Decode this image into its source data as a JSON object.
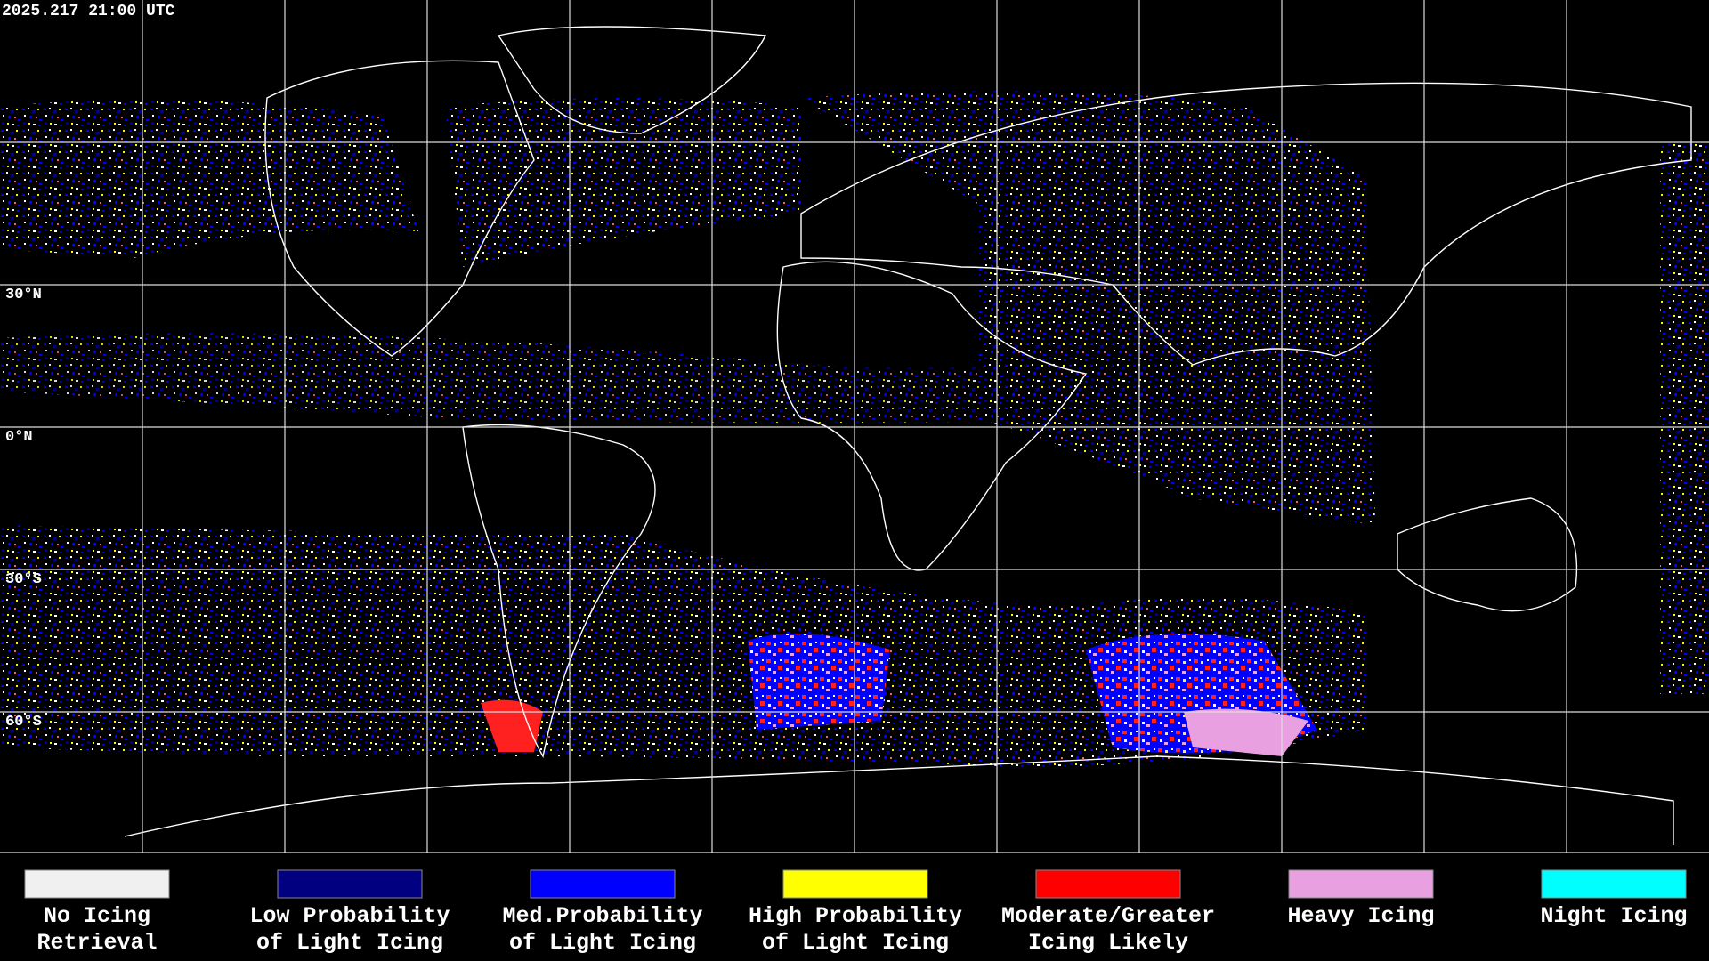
{
  "header": {
    "timestamp": "2025.217 21:00 UTC"
  },
  "map": {
    "latitude_labels": [
      "30°N",
      "0°N",
      "30°S",
      "60°S"
    ]
  },
  "legend": [
    {
      "color": "#f0f0f0",
      "lines": [
        "No Icing",
        "Retrieval"
      ]
    },
    {
      "color": "#000080",
      "lines": [
        "Low Probability",
        "of Light Icing"
      ]
    },
    {
      "color": "#0000ff",
      "lines": [
        "Med.Probability",
        "of Light Icing"
      ]
    },
    {
      "color": "#ffff00",
      "lines": [
        "High Probability",
        "of Light Icing"
      ]
    },
    {
      "color": "#ff0000",
      "lines": [
        "Moderate/Greater",
        "Icing Likely"
      ]
    },
    {
      "color": "#e8a0e0",
      "lines": [
        "Heavy Icing"
      ]
    },
    {
      "color": "#00ffff",
      "lines": [
        "Night Icing"
      ]
    }
  ]
}
